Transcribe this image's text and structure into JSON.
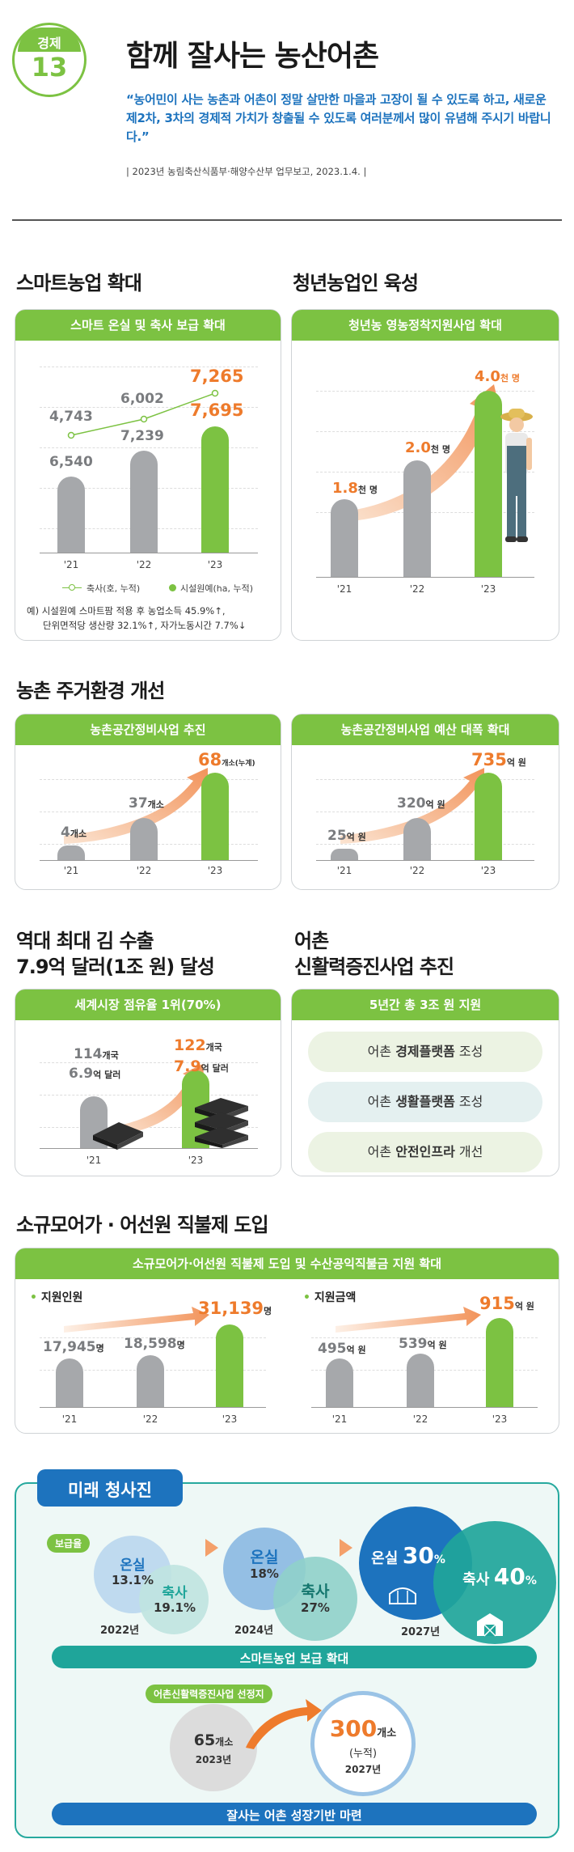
{
  "header": {
    "badge_top": "경제",
    "badge_num": "13",
    "title": "함께 잘사는 농산어촌",
    "quote": "“농어민이 사는 농촌과 어촌이 정말 살만한 마을과 고장이 될 수 있도록 하고, 새로운 제2차, 3차의 경제적 가치가 창출될 수 있도록 여러분께서 많이 유념해 주시기 바랍니다.”",
    "source": "| 2023년 농림축산식품부·해양수산부 업무보고, 2023.1.4. |"
  },
  "smart": {
    "section_title": "스마트농업 확대",
    "card_title": "스마트 온실 및 축사 보급 확대",
    "years": [
      "'21",
      "'22",
      "'23"
    ],
    "livestock_values": [
      "4,743",
      "6,002",
      "7,265"
    ],
    "greenhouse_values": [
      "6,540",
      "7,239",
      "7,695"
    ],
    "legend_livestock": "축사(호, 누적)",
    "legend_greenhouse": "시설원예(ha, 누적)",
    "note_line1": "예) 시설원예 스마트팜 적용 후 농업소득 45.9%↑,",
    "note_line2": "단위면적당 생산량 32.1%↑, 자가노동시간 7.7%↓"
  },
  "youth": {
    "section_title": "청년농업인 육성",
    "card_title": "청년농 영농정착지원사업 확대",
    "years": [
      "'21",
      "'22",
      "'23"
    ],
    "values": [
      "1.8",
      "2.0",
      "4.0"
    ],
    "unit": "천 명"
  },
  "housing": {
    "section_title": "농촌 주거환경 개선",
    "left_card_title": "농촌공간정비사업 추진",
    "left_years": [
      "'21",
      "'22",
      "'23"
    ],
    "left_values": [
      "4",
      "37",
      "68"
    ],
    "left_unit": "개소",
    "left_unit_last": "개소(누계)",
    "right_card_title": "농촌공간정비사업 예산 대폭 확대",
    "right_years": [
      "'21",
      "'22",
      "'23"
    ],
    "right_values": [
      "25",
      "320",
      "735"
    ],
    "right_unit": "억 원"
  },
  "laver": {
    "section_title_line1": "역대 최대 김 수출",
    "section_title_line2": "7.9억 달러(1조 원) 달성",
    "card_title": "세계시장 점유율 1위(70%)",
    "years": [
      "'21",
      "'23"
    ],
    "count_2021": "114",
    "count_2023": "122",
    "count_unit": "개국",
    "usd_2021": "6.9",
    "usd_2023": "7.9",
    "usd_unit": "억 달러"
  },
  "fishing": {
    "section_title_line1": "어촌",
    "section_title_line2": "신활력증진사업 추진",
    "card_title": "5년간 총 3조 원 지원",
    "items": [
      {
        "pre": "어촌 ",
        "bold": "경제플랫폼",
        "post": " 조성"
      },
      {
        "pre": "어촌 ",
        "bold": "생활플랫폼",
        "post": " 조성"
      },
      {
        "pre": "어촌 ",
        "bold": "안전인프라",
        "post": " 개선"
      }
    ]
  },
  "direct_pay": {
    "section_title": "소규모어가 · 어선원 직불제 도입",
    "card_title": "소규모어가·어선원 직불제 도입 및 수산공익직불금 지원 확대",
    "left_label": "지원인원",
    "left_years": [
      "'21",
      "'22",
      "'23"
    ],
    "left_values": [
      "17,945",
      "18,598",
      "31,139"
    ],
    "left_unit": "명",
    "right_label": "지원금액",
    "right_years": [
      "'21",
      "'22",
      "'23"
    ],
    "right_values": [
      "495",
      "539",
      "915"
    ],
    "right_unit": "억 원"
  },
  "future": {
    "title": "미래 청사진",
    "rate_label": "보급율",
    "y2022": {
      "a_label": "온실",
      "a_val": "13.1%",
      "b_label": "축사",
      "b_val": "19.1%",
      "year": "2022년"
    },
    "y2024": {
      "a_label": "온실",
      "a_val": "18%",
      "b_label": "축사",
      "b_val": "27%",
      "year": "2024년"
    },
    "y2027": {
      "a_label": "온실",
      "a_val": "30",
      "b_label": "축사",
      "b_val": "40",
      "pct": "%",
      "year": "2027년"
    },
    "bar1": "스마트농업 보급 확대",
    "selected_label": "어촌신활력증진사업 선정지",
    "from_val": "65",
    "from_unit": "개소",
    "from_year": "2023년",
    "to_val": "300",
    "to_unit": "개소",
    "to_note": "(누적)",
    "to_year": "2027년",
    "bar2": "잘사는 어촌 성장기반 마련"
  },
  "colors": {
    "green": "#7cc242",
    "orange": "#ee7b2c",
    "blue": "#1d73be",
    "teal": "#1fa59a",
    "gray": "#a6a8ab"
  }
}
